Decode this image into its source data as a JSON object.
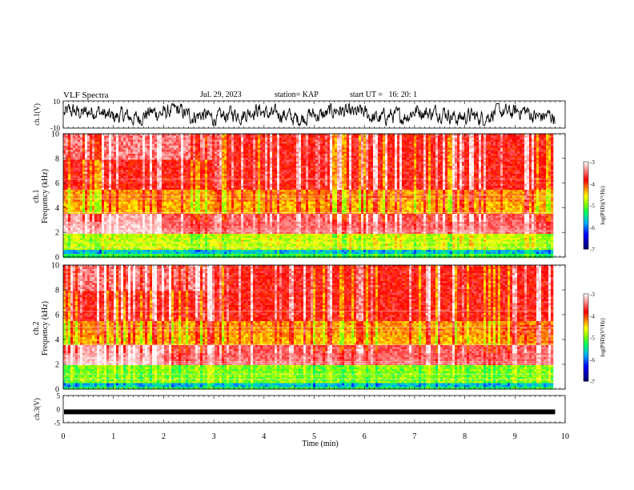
{
  "header": {
    "title": "VLF Spectra",
    "date": "Jul. 29, 2023",
    "station": "station= KAP",
    "start": "start UT =   16: 20: 1"
  },
  "chart_data": [
    {
      "type": "line",
      "name": "ch1-waveform",
      "ylabel": "ch.1(V)",
      "ylim": [
        -10,
        10
      ],
      "tick_labels": [
        "10",
        "-10"
      ],
      "note": "dense noise waveform oscillating around 0 V, amplitude roughly 3-6 V",
      "xlim": [
        0,
        9.8
      ]
    },
    {
      "type": "heatmap",
      "name": "ch1-spectrogram",
      "ylabel": "ch.1\nFrequency (kHz)",
      "ylabel_lines": [
        "ch.1",
        "Frequency (kHz)"
      ],
      "yticks": [
        0,
        2,
        4,
        6,
        8,
        10
      ],
      "ylim": [
        0,
        10
      ],
      "xlim": [
        0,
        9.8
      ],
      "colorbar": {
        "label": "log(PSD)(V²/Hz)",
        "ticks": [
          "-3",
          "-4",
          "-5",
          "-6",
          "-7"
        ],
        "range": [
          -7,
          -3
        ],
        "colors": [
          "#000060",
          "#0000ff",
          "#00b0ff",
          "#00ff60",
          "#80ff00",
          "#ffff00",
          "#ff8000",
          "#ff0000",
          "#ff9090",
          "#ffffff"
        ]
      },
      "features": {
        "low_band_khz": [
          0.5,
          2.0
        ],
        "strong_band_khz": [
          2.0,
          3.8
        ],
        "green_band_khz": [
          3.8,
          5.6
        ]
      }
    },
    {
      "type": "heatmap",
      "name": "ch2-spectrogram",
      "ylabel_lines": [
        "ch.2",
        "Frequency (kHz)"
      ],
      "yticks": [
        0,
        2,
        4,
        6,
        8,
        10
      ],
      "ylim": [
        0,
        10
      ],
      "xlim": [
        0,
        9.8
      ],
      "colorbar": {
        "label": "log(PSD)(V²/Hz)",
        "ticks": [
          "-3",
          "-4",
          "-5",
          "-6",
          "-7"
        ],
        "range": [
          -7,
          -3
        ]
      },
      "features": {
        "low_band_khz": [
          0.5,
          2.0
        ],
        "strong_band_khz": [
          2.0,
          4.0
        ],
        "change_at_min": 8.55
      }
    },
    {
      "type": "line",
      "name": "ch3-waveform",
      "ylabel": "ch.3(V)",
      "ylim": [
        -5,
        5
      ],
      "tick_labels": [
        "5",
        "0",
        "-5"
      ],
      "note": "flat thick trace near -1 V",
      "approx_value": -1,
      "xlim": [
        0,
        9.8
      ]
    }
  ],
  "xaxis": {
    "label": "Time (min)",
    "ticks": [
      0,
      1,
      2,
      3,
      4,
      5,
      6,
      7,
      8,
      9,
      10
    ],
    "xlim": [
      0,
      10
    ]
  }
}
